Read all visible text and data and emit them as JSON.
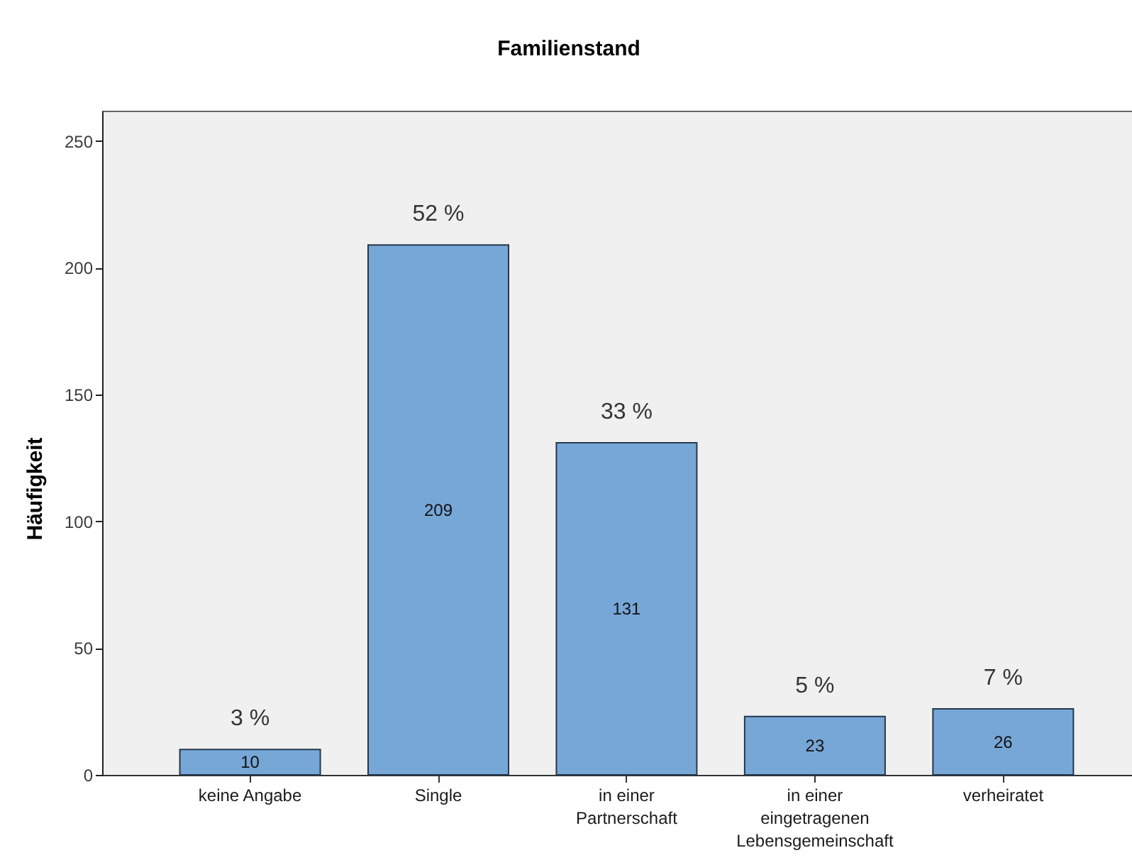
{
  "chart_data": {
    "type": "bar",
    "title": "Familienstand",
    "ylabel": "Häufigkeit",
    "categories": [
      "keine Angabe",
      "Single",
      "in einer Partnerschaft",
      "in einer eingetragenen Lebensgemeinschaft",
      "verheiratet"
    ],
    "values": [
      10,
      209,
      131,
      23,
      26
    ],
    "color": "#77a7d7",
    "ylim": [
      0,
      262
    ],
    "yticks": [
      0,
      50,
      100,
      150,
      200,
      250
    ],
    "data_labels": true,
    "annotations": [
      {
        "text": "3 %",
        "x": "keine Angabe",
        "y": 10
      },
      {
        "text": "52 %",
        "x": "Single",
        "y": 209
      },
      {
        "text": "33 %",
        "x": "in einer Partnerschaft",
        "y": 131
      },
      {
        "text": "5 %",
        "x": "in einer eingetragenen Lebensgemeinschaft",
        "y": 23
      },
      {
        "text": "7 %",
        "x": "verheiratet",
        "y": 26
      }
    ]
  }
}
